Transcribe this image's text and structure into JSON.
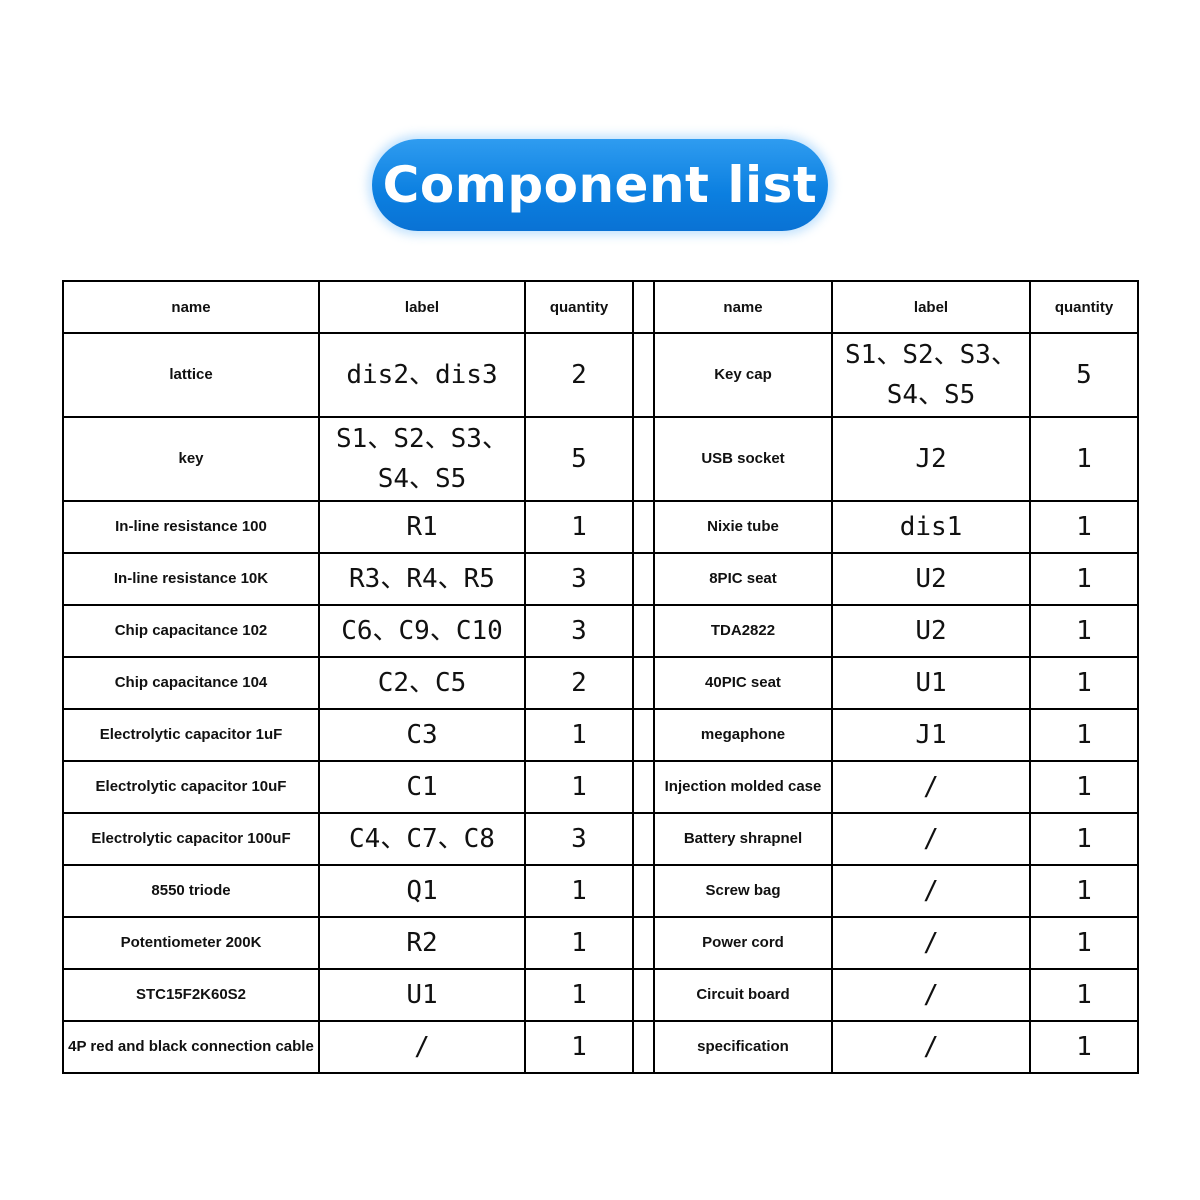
{
  "title": "Component list",
  "headers": {
    "name": "name",
    "label": "label",
    "quantity": "quantity"
  },
  "rows": [
    {
      "left": {
        "name": "lattice",
        "label": "dis2、dis3",
        "quantity": "2"
      },
      "right": {
        "name": "Key cap",
        "label": "S1、S2、S3、S4、S5",
        "quantity": "5"
      }
    },
    {
      "left": {
        "name": "key",
        "label": "S1、S2、S3、S4、S5",
        "quantity": "5"
      },
      "right": {
        "name": "USB socket",
        "label": "J2",
        "quantity": "1"
      }
    },
    {
      "left": {
        "name": "In-line resistance 100",
        "label": "R1",
        "quantity": "1"
      },
      "right": {
        "name": "Nixie tube",
        "label": "dis1",
        "quantity": "1"
      }
    },
    {
      "left": {
        "name": "In-line resistance 10K",
        "label": "R3、R4、R5",
        "quantity": "3"
      },
      "right": {
        "name": "8PIC seat",
        "label": "U2",
        "quantity": "1"
      }
    },
    {
      "left": {
        "name": "Chip capacitance 102",
        "label": "C6、C9、C10",
        "quantity": "3"
      },
      "right": {
        "name": "TDA2822",
        "label": "U2",
        "quantity": "1"
      }
    },
    {
      "left": {
        "name": "Chip capacitance 104",
        "label": "C2、C5",
        "quantity": "2"
      },
      "right": {
        "name": "40PIC seat",
        "label": "U1",
        "quantity": "1"
      }
    },
    {
      "left": {
        "name": "Electrolytic capacitor 1uF",
        "label": "C3",
        "quantity": "1"
      },
      "right": {
        "name": "megaphone",
        "label": "J1",
        "quantity": "1"
      }
    },
    {
      "left": {
        "name": "Electrolytic capacitor 10uF",
        "label": "C1",
        "quantity": "1"
      },
      "right": {
        "name": "Injection molded case",
        "label": "/",
        "quantity": "1"
      }
    },
    {
      "left": {
        "name": "Electrolytic capacitor 100uF",
        "label": "C4、C7、C8",
        "quantity": "3"
      },
      "right": {
        "name": "Battery shrapnel",
        "label": "/",
        "quantity": "1"
      }
    },
    {
      "left": {
        "name": "8550 triode",
        "label": "Q1",
        "quantity": "1"
      },
      "right": {
        "name": "Screw bag",
        "label": "/",
        "quantity": "1"
      }
    },
    {
      "left": {
        "name": "Potentiometer 200K",
        "label": "R2",
        "quantity": "1"
      },
      "right": {
        "name": "Power cord",
        "label": "/",
        "quantity": "1"
      }
    },
    {
      "left": {
        "name": "STC15F2K60S2",
        "label": "U1",
        "quantity": "1"
      },
      "right": {
        "name": "Circuit board",
        "label": "/",
        "quantity": "1"
      }
    },
    {
      "left": {
        "name": "4P red and black connection cable",
        "label": "/",
        "quantity": "1"
      },
      "right": {
        "name": "specification",
        "label": "/",
        "quantity": "1"
      }
    }
  ]
}
